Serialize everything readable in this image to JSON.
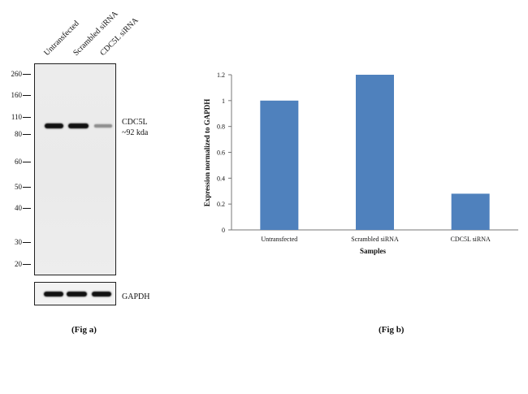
{
  "figure_a": {
    "lane_labels": [
      "Untransfected",
      "Scrambled siRNA",
      "CDC5L siRNA"
    ],
    "molecular_weights": [
      "260",
      "160",
      "110",
      "80",
      "60",
      "50",
      "40",
      "30",
      "20"
    ],
    "target_label": "CDC5L",
    "target_size": "~92 kda",
    "loading_control_label": "GAPDH",
    "caption": "(Fig a)"
  },
  "chart_data": {
    "type": "bar",
    "categories": [
      "Untransfected",
      "Scrambled siRNA",
      "CDC5L  siRNA"
    ],
    "values": [
      1.0,
      1.2,
      0.28
    ],
    "title": "",
    "xlabel": "Samples",
    "ylabel": "Expression  normalized to GAPDH",
    "ylim": [
      0,
      1.2
    ],
    "yticks": [
      "0",
      "0.2",
      "0.4",
      "0.6",
      "0.8",
      "1",
      "1.2"
    ],
    "bar_color": "#4f81bd",
    "grid": false,
    "legend": "none",
    "caption": "(Fig b)"
  }
}
